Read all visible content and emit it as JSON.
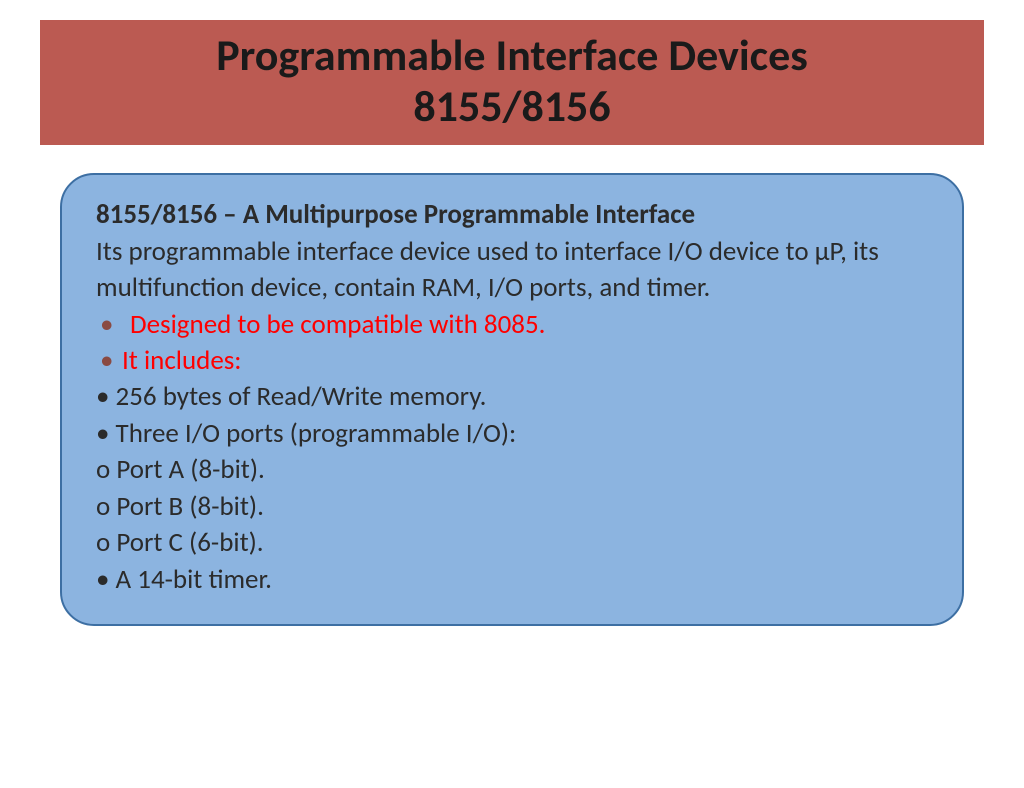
{
  "colors": {
    "title_bg": "#bb5a52",
    "title_text": "#1a1a1a",
    "box_bg": "#8cb4e0",
    "box_border": "#3d6fa3",
    "body_text": "#2b2b2b",
    "red_text": "#ff0000",
    "bullet_dot": "#8a4a42"
  },
  "fonts": {
    "title_size": 44,
    "body_size": 27,
    "subtitle_weight": 700
  },
  "title": {
    "line1": "Programmable Interface Devices",
    "line2": "8155/8156"
  },
  "content": {
    "subtitle": "8155/8156 – A Multipurpose Programmable Interface",
    "intro": "Its programmable interface device used to interface I/O device to µP, its multifunction device, contain RAM, I/O ports, and timer.",
    "red_bullets": [
      "Designed to be compatible with 8085.",
      "It includes:"
    ],
    "black_lines": [
      "• 256 bytes of Read/Write memory.",
      "• Three I/O ports (programmable I/O):",
      "o Port A (8-bit).",
      "o Port B (8-bit).",
      "o Port C (6-bit).",
      "• A 14-bit timer."
    ]
  }
}
